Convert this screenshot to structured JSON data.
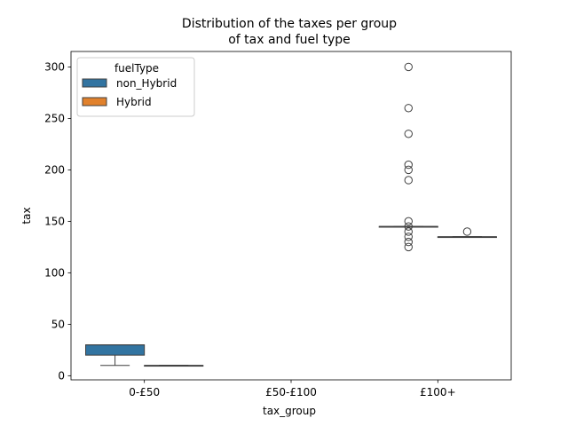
{
  "chart_data": {
    "type": "box",
    "title": "Distribution of the taxes per group of tax and fuel type",
    "title_lines": [
      "Distribution of the taxes per group",
      "of tax and fuel type"
    ],
    "xlabel": "tax_group",
    "ylabel": "tax",
    "categories": [
      "0-£50",
      "£50-£100",
      "£100+"
    ],
    "ylim": [
      -4,
      315
    ],
    "yticks": [
      0,
      50,
      100,
      150,
      200,
      250,
      300
    ],
    "grid": false,
    "legend": {
      "title": "fuelType",
      "placement": "top-left"
    },
    "series": [
      {
        "name": "non_Hybrid",
        "color": "#3274a1",
        "boxes": [
          {
            "category": "0-£50",
            "whislo": 10,
            "q1": 20,
            "med": 30,
            "q3": 30,
            "whishi": 30,
            "fliers": []
          },
          {
            "category": "£50-£100",
            "whislo": null,
            "q1": null,
            "med": null,
            "q3": null,
            "whishi": null,
            "fliers": []
          },
          {
            "category": "£100+",
            "whislo": 145,
            "q1": 145,
            "med": 145,
            "q3": 145,
            "whishi": 145,
            "fliers": [
              300,
              260,
              235,
              205,
              200,
              190,
              150,
              145,
              140,
              135,
              130,
              125
            ]
          }
        ]
      },
      {
        "name": "Hybrid",
        "color": "#e1812c",
        "boxes": [
          {
            "category": "0-£50",
            "whislo": 10,
            "q1": 10,
            "med": 10,
            "q3": 10,
            "whishi": 10,
            "fliers": []
          },
          {
            "category": "£50-£100",
            "whislo": null,
            "q1": null,
            "med": null,
            "q3": null,
            "whishi": null,
            "fliers": []
          },
          {
            "category": "£100+",
            "whislo": 135,
            "q1": 135,
            "med": 135,
            "q3": 135,
            "whishi": 135,
            "fliers": [
              140
            ]
          }
        ]
      }
    ]
  }
}
